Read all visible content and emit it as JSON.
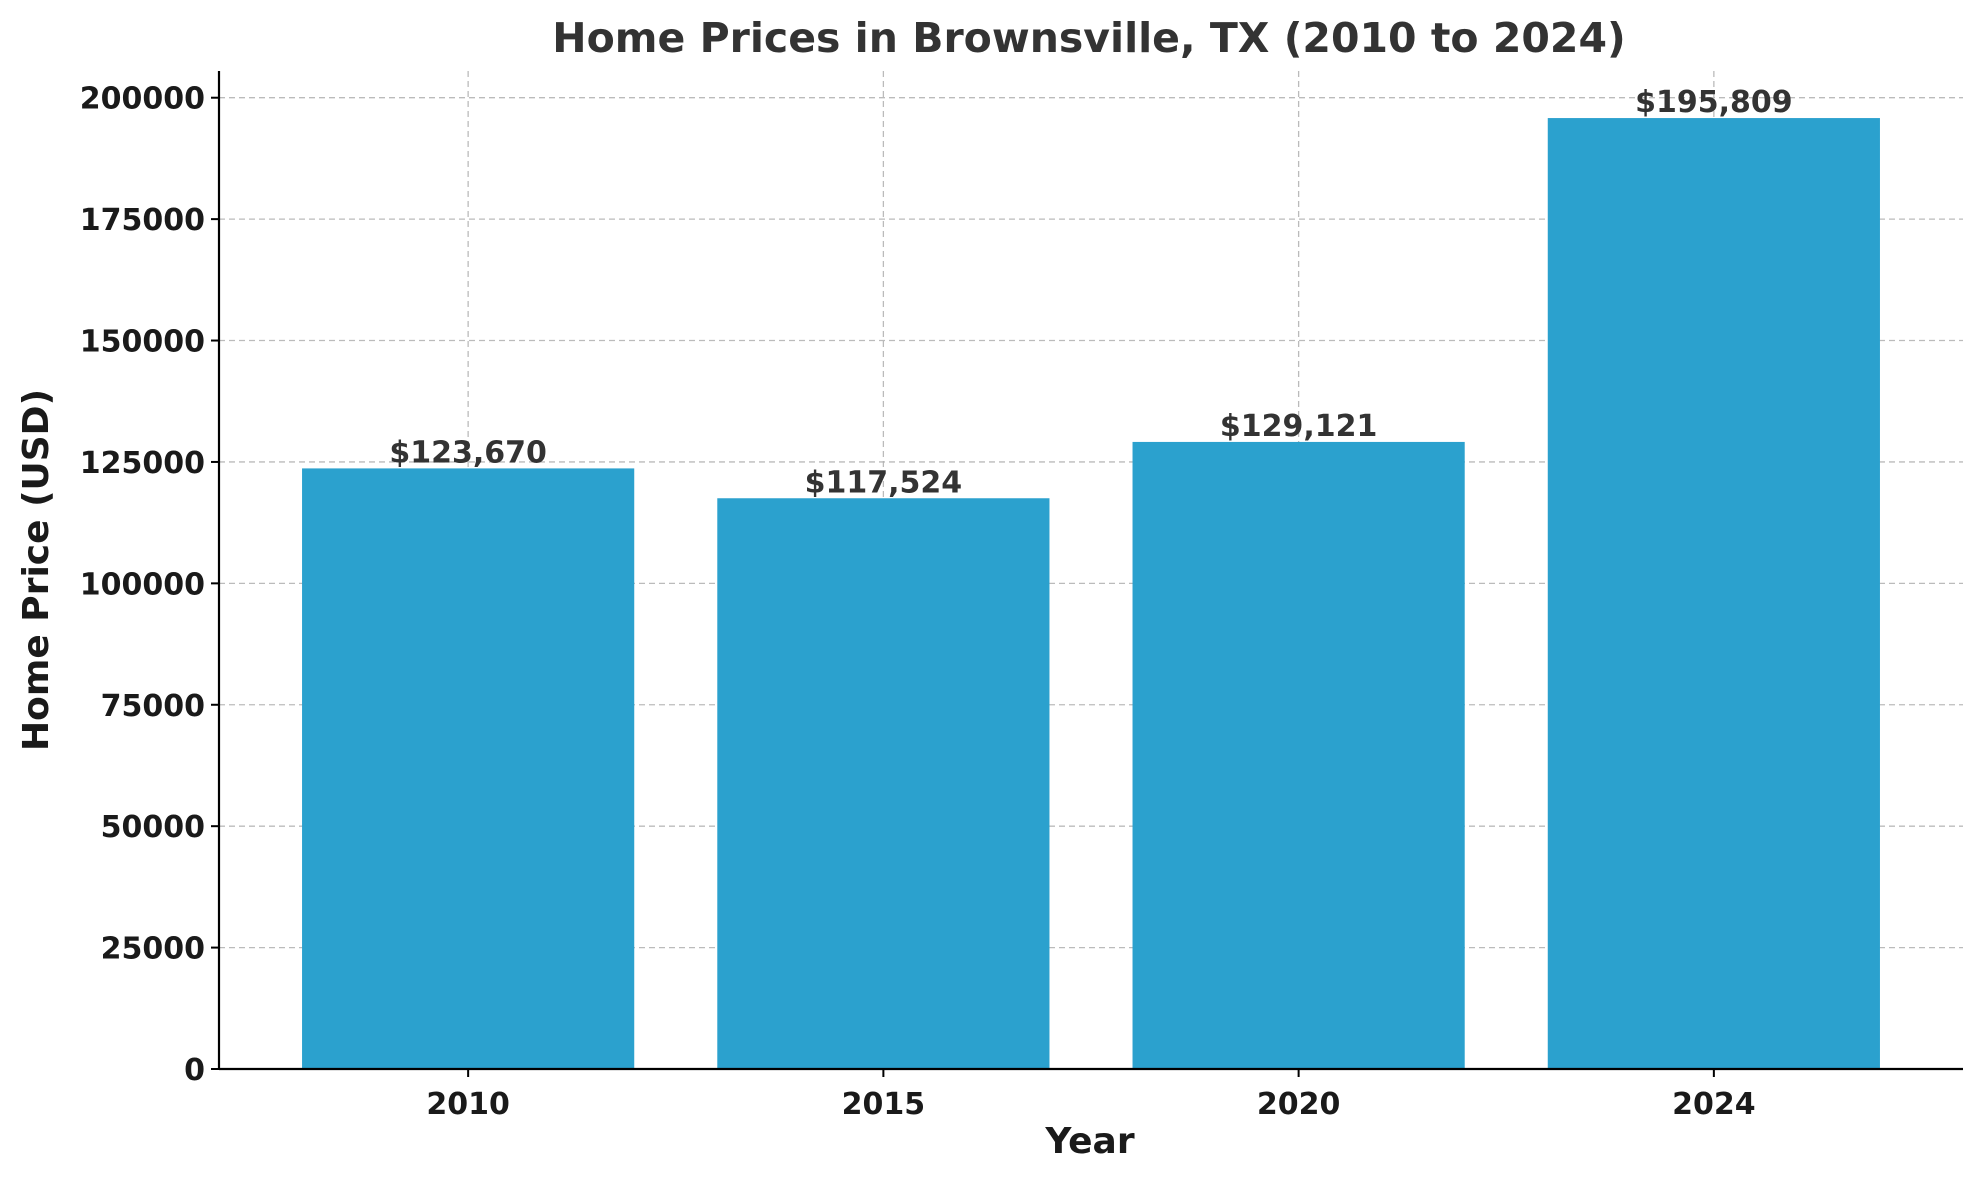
{
  "chart_data": {
    "type": "bar",
    "title": "Home Prices in Brownsville, TX (2010 to 2024)",
    "xlabel": "Year",
    "ylabel": "Home Price (USD)",
    "categories": [
      "2010",
      "2015",
      "2020",
      "2024"
    ],
    "values": [
      123670,
      117524,
      129121,
      195809
    ],
    "data_labels": [
      "$123,670",
      "$117,524",
      "$129,121",
      "$195,809"
    ],
    "ylim": [
      0,
      205500
    ],
    "yticks": [
      0,
      25000,
      50000,
      75000,
      100000,
      125000,
      150000,
      175000,
      200000
    ],
    "ytick_labels": [
      "0",
      "25000",
      "50000",
      "75000",
      "100000",
      "125000",
      "150000",
      "175000",
      "200000"
    ],
    "grid": true,
    "bar_color": "#2ba1ce"
  }
}
